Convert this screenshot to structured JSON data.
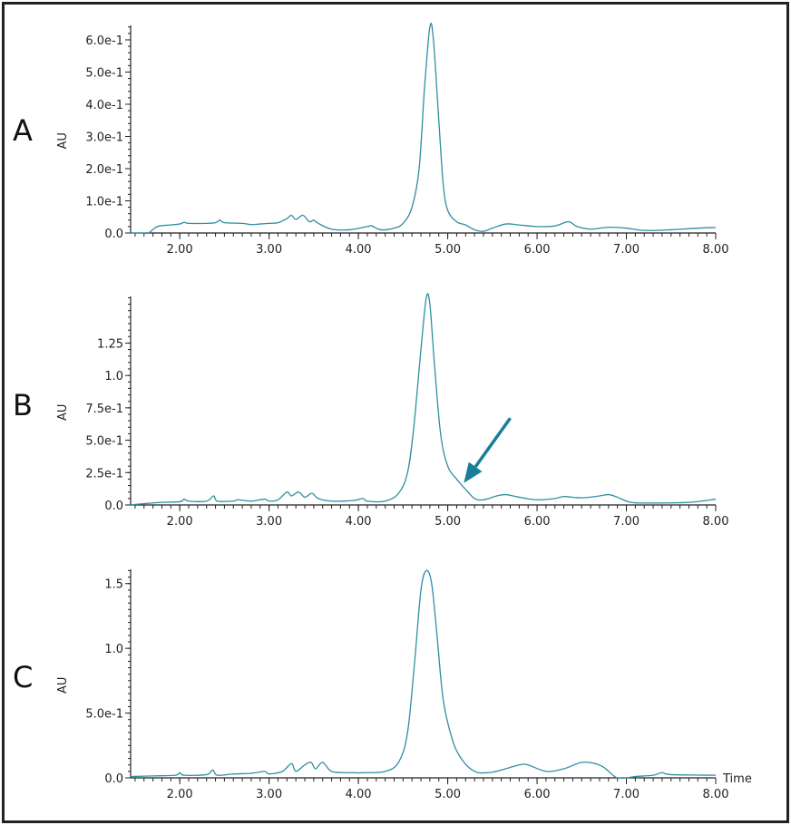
{
  "colors": {
    "trace": "#2f8ea3",
    "arrow": "#1a7d99",
    "axis": "#222222"
  },
  "chart_data": [
    {
      "type": "line",
      "panel_label": "A",
      "ylabel": "AU",
      "xlabel": "",
      "xlim": [
        1.45,
        8.0
      ],
      "ylim": [
        0,
        0.645
      ],
      "xticks": [
        2,
        3,
        4,
        5,
        6,
        7,
        8
      ],
      "xtick_labels": [
        "2.00",
        "3.00",
        "4.00",
        "5.00",
        "6.00",
        "7.00",
        "8.00"
      ],
      "yticks": [
        0,
        0.1,
        0.2,
        0.3,
        0.4,
        0.5,
        0.6
      ],
      "ytick_labels": [
        "0.0",
        "1.0e-1",
        "2.0e-1",
        "3.0e-1",
        "4.0e-1",
        "5.0e-1",
        "6.0e-1"
      ],
      "yminor": 0.02,
      "points": [
        [
          1.45,
          0
        ],
        [
          1.6,
          0
        ],
        [
          1.65,
          0
        ],
        [
          1.75,
          0.02
        ],
        [
          1.9,
          0.025
        ],
        [
          2.0,
          0.028
        ],
        [
          2.05,
          0.033
        ],
        [
          2.1,
          0.03
        ],
        [
          2.3,
          0.03
        ],
        [
          2.4,
          0.032
        ],
        [
          2.45,
          0.04
        ],
        [
          2.5,
          0.032
        ],
        [
          2.7,
          0.03
        ],
        [
          2.8,
          0.026
        ],
        [
          2.9,
          0.028
        ],
        [
          3.0,
          0.03
        ],
        [
          3.1,
          0.032
        ],
        [
          3.2,
          0.045
        ],
        [
          3.25,
          0.055
        ],
        [
          3.3,
          0.042
        ],
        [
          3.38,
          0.055
        ],
        [
          3.45,
          0.035
        ],
        [
          3.5,
          0.04
        ],
        [
          3.55,
          0.03
        ],
        [
          3.7,
          0.012
        ],
        [
          3.9,
          0.01
        ],
        [
          4.1,
          0.02
        ],
        [
          4.15,
          0.022
        ],
        [
          4.25,
          0.01
        ],
        [
          4.4,
          0.015
        ],
        [
          4.5,
          0.03
        ],
        [
          4.6,
          0.08
        ],
        [
          4.68,
          0.2
        ],
        [
          4.74,
          0.45
        ],
        [
          4.8,
          0.64
        ],
        [
          4.84,
          0.6
        ],
        [
          4.9,
          0.35
        ],
        [
          4.95,
          0.15
        ],
        [
          5.0,
          0.07
        ],
        [
          5.1,
          0.035
        ],
        [
          5.2,
          0.025
        ],
        [
          5.3,
          0.01
        ],
        [
          5.4,
          0.005
        ],
        [
          5.5,
          0.015
        ],
        [
          5.65,
          0.028
        ],
        [
          5.8,
          0.025
        ],
        [
          6.0,
          0.02
        ],
        [
          6.2,
          0.022
        ],
        [
          6.35,
          0.035
        ],
        [
          6.45,
          0.02
        ],
        [
          6.6,
          0.012
        ],
        [
          6.8,
          0.018
        ],
        [
          7.0,
          0.015
        ],
        [
          7.2,
          0.008
        ],
        [
          7.5,
          0.01
        ],
        [
          7.8,
          0.015
        ],
        [
          8.0,
          0.017
        ]
      ]
    },
    {
      "type": "line",
      "panel_label": "B",
      "ylabel": "AU",
      "xlabel": "",
      "xlim": [
        1.45,
        8.0
      ],
      "ylim": [
        0,
        1.61
      ],
      "xticks": [
        2,
        3,
        4,
        5,
        6,
        7,
        8
      ],
      "xtick_labels": [
        "2.00",
        "3.00",
        "4.00",
        "5.00",
        "6.00",
        "7.00",
        "8.00"
      ],
      "yticks": [
        0,
        0.25,
        0.5,
        0.75,
        1.0,
        1.25
      ],
      "ytick_labels": [
        "0.0",
        "2.5e-1",
        "5.0e-1",
        "7.5e-1",
        "1.0",
        "1.25"
      ],
      "yminor": 0.05,
      "annotation": {
        "type": "arrow",
        "from": [
          5.7,
          0.67
        ],
        "to": [
          5.18,
          0.17
        ]
      },
      "points": [
        [
          1.45,
          0
        ],
        [
          1.6,
          0.01
        ],
        [
          1.8,
          0.02
        ],
        [
          2.0,
          0.025
        ],
        [
          2.05,
          0.045
        ],
        [
          2.1,
          0.03
        ],
        [
          2.3,
          0.03
        ],
        [
          2.38,
          0.07
        ],
        [
          2.42,
          0.03
        ],
        [
          2.6,
          0.03
        ],
        [
          2.65,
          0.04
        ],
        [
          2.8,
          0.03
        ],
        [
          2.95,
          0.045
        ],
        [
          3.0,
          0.03
        ],
        [
          3.1,
          0.04
        ],
        [
          3.2,
          0.1
        ],
        [
          3.25,
          0.07
        ],
        [
          3.33,
          0.1
        ],
        [
          3.4,
          0.06
        ],
        [
          3.48,
          0.09
        ],
        [
          3.55,
          0.05
        ],
        [
          3.7,
          0.03
        ],
        [
          3.95,
          0.035
        ],
        [
          4.05,
          0.05
        ],
        [
          4.1,
          0.03
        ],
        [
          4.3,
          0.03
        ],
        [
          4.45,
          0.09
        ],
        [
          4.55,
          0.25
        ],
        [
          4.62,
          0.6
        ],
        [
          4.7,
          1.2
        ],
        [
          4.76,
          1.6
        ],
        [
          4.8,
          1.55
        ],
        [
          4.85,
          1.1
        ],
        [
          4.92,
          0.55
        ],
        [
          5.0,
          0.3
        ],
        [
          5.1,
          0.2
        ],
        [
          5.2,
          0.12
        ],
        [
          5.3,
          0.05
        ],
        [
          5.4,
          0.04
        ],
        [
          5.55,
          0.07
        ],
        [
          5.65,
          0.08
        ],
        [
          5.8,
          0.06
        ],
        [
          6.0,
          0.04
        ],
        [
          6.2,
          0.05
        ],
        [
          6.3,
          0.065
        ],
        [
          6.5,
          0.055
        ],
        [
          6.7,
          0.07
        ],
        [
          6.8,
          0.08
        ],
        [
          6.9,
          0.06
        ],
        [
          7.05,
          0.02
        ],
        [
          7.3,
          0.015
        ],
        [
          7.7,
          0.02
        ],
        [
          8.0,
          0.045
        ]
      ]
    },
    {
      "type": "line",
      "panel_label": "C",
      "ylabel": "AU",
      "xlabel": "Time",
      "xlim": [
        1.45,
        8.0
      ],
      "ylim": [
        0,
        1.61
      ],
      "xticks": [
        2,
        3,
        4,
        5,
        6,
        7,
        8
      ],
      "xtick_labels": [
        "2.00",
        "3.00",
        "4.00",
        "5.00",
        "6.00",
        "7.00",
        "8.00"
      ],
      "yticks": [
        0,
        0.5,
        1.0,
        1.5
      ],
      "ytick_labels": [
        "0.0",
        "5.0e-1",
        "1.0",
        "1.5"
      ],
      "yminor": 0.05,
      "points": [
        [
          1.45,
          0.01
        ],
        [
          1.7,
          0.015
        ],
        [
          1.95,
          0.02
        ],
        [
          2.0,
          0.04
        ],
        [
          2.05,
          0.02
        ],
        [
          2.3,
          0.025
        ],
        [
          2.37,
          0.06
        ],
        [
          2.42,
          0.02
        ],
        [
          2.6,
          0.03
        ],
        [
          2.8,
          0.035
        ],
        [
          2.95,
          0.05
        ],
        [
          3.0,
          0.03
        ],
        [
          3.15,
          0.05
        ],
        [
          3.25,
          0.11
        ],
        [
          3.3,
          0.05
        ],
        [
          3.4,
          0.1
        ],
        [
          3.47,
          0.12
        ],
        [
          3.52,
          0.07
        ],
        [
          3.6,
          0.12
        ],
        [
          3.7,
          0.05
        ],
        [
          3.9,
          0.04
        ],
        [
          4.1,
          0.04
        ],
        [
          4.3,
          0.05
        ],
        [
          4.45,
          0.12
        ],
        [
          4.55,
          0.35
        ],
        [
          4.63,
          0.9
        ],
        [
          4.7,
          1.45
        ],
        [
          4.76,
          1.6
        ],
        [
          4.82,
          1.5
        ],
        [
          4.88,
          1.1
        ],
        [
          4.95,
          0.6
        ],
        [
          5.05,
          0.3
        ],
        [
          5.15,
          0.15
        ],
        [
          5.3,
          0.05
        ],
        [
          5.45,
          0.04
        ],
        [
          5.6,
          0.06
        ],
        [
          5.8,
          0.1
        ],
        [
          5.9,
          0.1
        ],
        [
          6.1,
          0.05
        ],
        [
          6.3,
          0.07
        ],
        [
          6.5,
          0.12
        ],
        [
          6.65,
          0.11
        ],
        [
          6.75,
          0.08
        ],
        [
          6.85,
          0.02
        ],
        [
          6.9,
          0
        ],
        [
          7.0,
          0
        ],
        [
          7.1,
          0.01
        ],
        [
          7.3,
          0.02
        ],
        [
          7.4,
          0.04
        ],
        [
          7.5,
          0.025
        ],
        [
          8.0,
          0.02
        ]
      ]
    }
  ]
}
